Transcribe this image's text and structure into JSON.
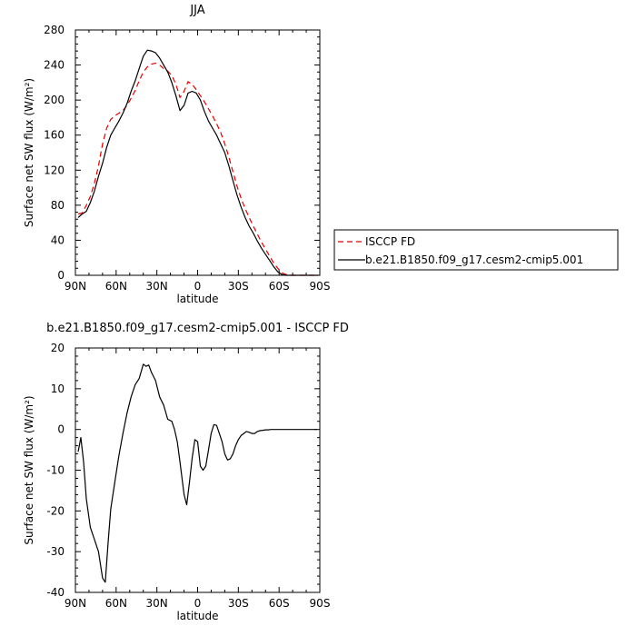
{
  "chart_data": [
    {
      "type": "line",
      "title": "JJA",
      "xlabel": "latitude",
      "ylabel": "Surface net SW flux (W/m²)",
      "xlim": [
        90,
        -90
      ],
      "ylim": [
        0,
        280
      ],
      "xticks": [
        90,
        60,
        30,
        0,
        -30,
        -60,
        -90
      ],
      "xtick_labels": [
        "90N",
        "60N",
        "30N",
        "0",
        "30S",
        "60S",
        "90S"
      ],
      "yticks": [
        0,
        40,
        80,
        120,
        160,
        200,
        240,
        280
      ],
      "ytick_labels": [
        "0",
        "40",
        "80",
        "120",
        "160",
        "200",
        "240",
        "280"
      ],
      "legend_position": "right",
      "series": [
        {
          "name": "ISCCP FD",
          "color": "#e00000",
          "dash": "dashed",
          "x": [
            88,
            85,
            82,
            79,
            76,
            73,
            70,
            67,
            64,
            61,
            58,
            55,
            52,
            49,
            46,
            43,
            40,
            37,
            34,
            31,
            28,
            25,
            22,
            19,
            16,
            13,
            10,
            7,
            4,
            1,
            -2,
            -5,
            -8,
            -11,
            -14,
            -17,
            -20,
            -23,
            -26,
            -29,
            -32,
            -35,
            -38,
            -41,
            -44,
            -47,
            -50,
            -53,
            -56,
            -59,
            -62,
            -65,
            -68,
            -71,
            -74,
            -77,
            -80,
            -83,
            -86,
            -89
          ],
          "y": [
            70,
            71,
            80,
            90,
            105,
            125,
            150,
            168,
            178,
            182,
            185,
            188,
            194,
            202,
            211,
            222,
            232,
            238,
            241,
            242,
            240,
            236,
            233,
            228,
            218,
            203,
            210,
            221,
            218,
            212,
            205,
            198,
            190,
            182,
            173,
            163,
            150,
            135,
            118,
            102,
            88,
            76,
            66,
            56,
            47,
            38,
            30,
            22,
            14,
            8,
            3,
            1,
            0,
            0,
            0,
            0,
            0,
            0,
            0,
            0
          ]
        },
        {
          "name": "b.e21.B1850.f09_g17.cesm2-cmip5.001",
          "color": "#000000",
          "dash": "solid",
          "x": [
            88,
            85,
            82,
            79,
            76,
            73,
            70,
            67,
            64,
            61,
            58,
            55,
            52,
            49,
            46,
            43,
            40,
            37,
            34,
            31,
            28,
            25,
            22,
            19,
            16,
            13,
            10,
            7,
            4,
            1,
            -2,
            -5,
            -8,
            -11,
            -14,
            -17,
            -20,
            -23,
            -26,
            -29,
            -32,
            -35,
            -38,
            -41,
            -44,
            -47,
            -50,
            -53,
            -56,
            -59,
            -62,
            -65,
            -68,
            -71,
            -74,
            -77,
            -80,
            -83,
            -86,
            -89
          ],
          "y": [
            66,
            70,
            73,
            83,
            96,
            113,
            128,
            146,
            160,
            168,
            176,
            185,
            196,
            210,
            222,
            236,
            250,
            257,
            256,
            254,
            248,
            240,
            232,
            220,
            205,
            188,
            194,
            208,
            210,
            208,
            200,
            187,
            176,
            168,
            160,
            150,
            140,
            125,
            108,
            92,
            78,
            66,
            56,
            48,
            39,
            31,
            24,
            17,
            10,
            4,
            1,
            0,
            0,
            0,
            0,
            0,
            0,
            0,
            0,
            0
          ]
        }
      ]
    },
    {
      "type": "line",
      "title": "b.e21.B1850.f09_g17.cesm2-cmip5.001 - ISCCP FD",
      "xlabel": "latitude",
      "ylabel": "Surface net SW flux (W/m²)",
      "xlim": [
        90,
        -90
      ],
      "ylim": [
        -40,
        20
      ],
      "xticks": [
        90,
        60,
        30,
        0,
        -30,
        -60,
        -90
      ],
      "xtick_labels": [
        "90N",
        "60N",
        "30N",
        "0",
        "30S",
        "60S",
        "90S"
      ],
      "yticks": [
        -40,
        -30,
        -20,
        -10,
        0,
        10,
        20
      ],
      "ytick_labels": [
        "-40",
        "-30",
        "-20",
        "-10",
        "0",
        "10",
        "20"
      ],
      "series": [
        {
          "name": "",
          "color": "#000000",
          "dash": "solid",
          "x": [
            88,
            86,
            84,
            82,
            79,
            76,
            73,
            70,
            68,
            66,
            64,
            61,
            58,
            55,
            52,
            49,
            46,
            43,
            40,
            38,
            36,
            34,
            31,
            28,
            25,
            22,
            19,
            17,
            15,
            13,
            10,
            8,
            6,
            4,
            2,
            0,
            -2,
            -4,
            -6,
            -8,
            -10,
            -12,
            -14,
            -16,
            -18,
            -20,
            -22,
            -24,
            -26,
            -28,
            -30,
            -32,
            -34,
            -36,
            -38,
            -40,
            -42,
            -44,
            -46,
            -48,
            -50,
            -52,
            -54,
            -56,
            -58,
            -60,
            -62,
            -64,
            -66,
            -68,
            -70,
            -72,
            -74,
            -76,
            -78,
            -80,
            -82,
            -84,
            -86,
            -88
          ],
          "y": [
            -5.5,
            -2,
            -8,
            -17,
            -24,
            -27,
            -30,
            -36.5,
            -37.5,
            -28,
            -19.5,
            -13,
            -6.5,
            -1,
            4,
            8,
            11,
            12.5,
            16,
            15.5,
            15.8,
            14,
            12,
            8,
            6,
            2.5,
            2,
            0,
            -3,
            -8,
            -16,
            -18.5,
            -13,
            -7,
            -2.5,
            -3,
            -9,
            -10,
            -9,
            -5,
            -1,
            1.2,
            1,
            -1,
            -3,
            -6,
            -7.5,
            -7.2,
            -6,
            -4,
            -2.5,
            -1.5,
            -1,
            -0.5,
            -0.7,
            -1,
            -1,
            -0.5,
            -0.3,
            -0.2,
            -0.1,
            -0.1,
            0,
            0,
            0,
            0,
            0,
            0,
            0,
            0,
            0,
            0,
            0,
            0,
            0,
            0,
            0,
            0,
            0,
            0
          ]
        }
      ]
    }
  ]
}
